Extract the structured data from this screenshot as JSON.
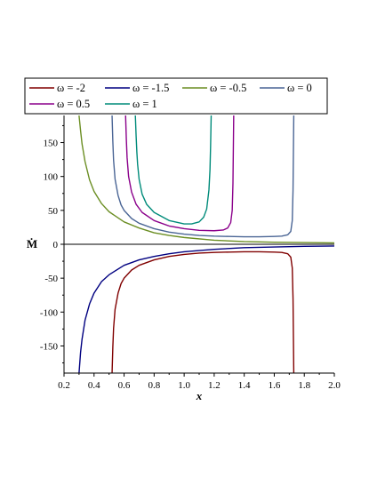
{
  "chart_data": {
    "type": "line",
    "xlabel": "x",
    "ylabel": "Ṁ",
    "xlim": [
      0.2,
      2.0
    ],
    "ylim": [
      -190,
      190
    ],
    "x_ticks": [
      0.2,
      0.4,
      0.6,
      0.8,
      1.0,
      1.2,
      1.4,
      1.6,
      1.8,
      2.0
    ],
    "x_tick_labels": [
      "0.2",
      "0.4",
      "0.6",
      "0.8",
      "1.0",
      "1.2",
      "1.4",
      "1.6",
      "1.8",
      "2.0"
    ],
    "y_ticks": [
      -150,
      -100,
      -50,
      0,
      50,
      100,
      150
    ],
    "y_tick_labels": [
      "-150",
      "-100",
      "-50",
      "0",
      "50",
      "100",
      "150"
    ],
    "grid": false,
    "legend_position": "top",
    "series": [
      {
        "name": "ω = -2",
        "color": "#800000",
        "x": [
          0.52,
          0.525,
          0.53,
          0.54,
          0.56,
          0.58,
          0.6,
          0.65,
          0.7,
          0.8,
          0.9,
          1.0,
          1.1,
          1.2,
          1.3,
          1.4,
          1.5,
          1.6,
          1.65,
          1.69,
          1.71,
          1.72,
          1.725,
          1.73
        ],
        "y": [
          -190,
          -152,
          -124,
          -96,
          -72,
          -58,
          -50,
          -38,
          -31,
          -23,
          -18,
          -15,
          -13,
          -12,
          -11.5,
          -11,
          -11,
          -11.5,
          -12,
          -14,
          -19,
          -35,
          -80,
          -190
        ]
      },
      {
        "name": "ω = -1.5",
        "color": "#000080",
        "x": [
          0.3,
          0.31,
          0.32,
          0.34,
          0.37,
          0.4,
          0.45,
          0.5,
          0.6,
          0.7,
          0.8,
          0.9,
          1.0,
          1.2,
          1.4,
          1.6,
          1.8,
          2.0
        ],
        "y": [
          -190,
          -160,
          -140,
          -112,
          -88,
          -72,
          -55,
          -45,
          -31,
          -23,
          -18,
          -14,
          -11,
          -7.5,
          -5,
          -4,
          -3,
          -2.5
        ]
      },
      {
        "name": "ω = -0.5",
        "color": "#6b8e23",
        "x": [
          0.3,
          0.31,
          0.32,
          0.34,
          0.37,
          0.4,
          0.45,
          0.5,
          0.6,
          0.7,
          0.8,
          0.9,
          1.0,
          1.2,
          1.4,
          1.6,
          1.8,
          2.0
        ],
        "y": [
          190,
          168,
          148,
          122,
          95,
          78,
          60,
          48,
          33,
          24,
          17,
          13,
          10,
          6,
          4,
          3,
          2.5,
          2
        ]
      },
      {
        "name": "ω = 0",
        "color": "#4a6595",
        "x": [
          0.52,
          0.525,
          0.53,
          0.54,
          0.56,
          0.58,
          0.6,
          0.65,
          0.7,
          0.8,
          0.9,
          1.0,
          1.1,
          1.2,
          1.3,
          1.4,
          1.5,
          1.6,
          1.65,
          1.69,
          1.71,
          1.72,
          1.725,
          1.73
        ],
        "y": [
          190,
          152,
          124,
          96,
          72,
          58,
          50,
          38,
          31,
          23,
          18,
          15,
          13,
          12,
          11.5,
          11,
          11,
          11.5,
          12,
          14,
          19,
          35,
          80,
          190
        ]
      },
      {
        "name": "ω = 0.5",
        "color": "#8b008b",
        "x": [
          0.61,
          0.615,
          0.62,
          0.63,
          0.65,
          0.68,
          0.72,
          0.8,
          0.9,
          1.0,
          1.1,
          1.2,
          1.26,
          1.29,
          1.31,
          1.32,
          1.325,
          1.33
        ],
        "y": [
          190,
          155,
          128,
          100,
          77,
          59,
          47,
          35,
          27,
          23,
          20.5,
          20,
          21,
          24,
          32,
          50,
          90,
          190
        ]
      },
      {
        "name": "ω = 1",
        "color": "#008b7a",
        "x": [
          0.675,
          0.68,
          0.685,
          0.69,
          0.7,
          0.72,
          0.75,
          0.8,
          0.9,
          1.0,
          1.05,
          1.1,
          1.13,
          1.15,
          1.165,
          1.172,
          1.176,
          1.18
        ],
        "y": [
          190,
          160,
          136,
          118,
          96,
          74,
          59,
          47,
          35,
          30,
          30,
          33,
          40,
          52,
          80,
          110,
          145,
          190
        ]
      }
    ]
  }
}
